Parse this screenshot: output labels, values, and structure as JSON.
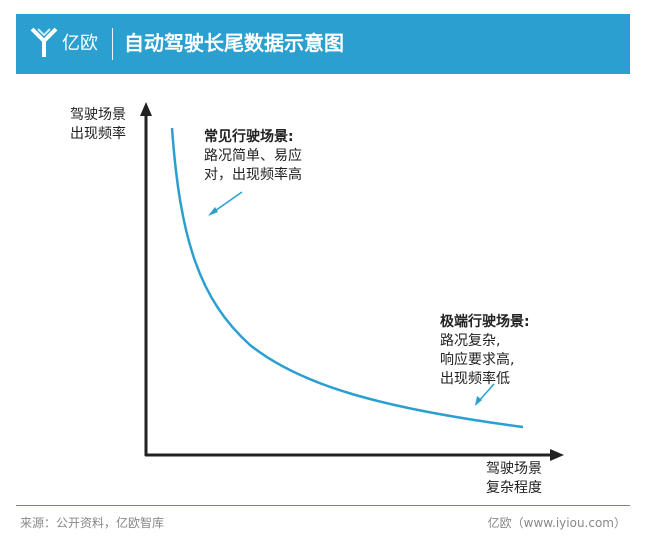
{
  "header": {
    "logo_text": "亿欧",
    "title": "自动驾驶长尾数据示意图"
  },
  "diagram": {
    "y_axis_label_line1": "驾驶场景",
    "y_axis_label_line2": "出现频率",
    "x_axis_label_line1": "驾驶场景",
    "x_axis_label_line2": "复杂程度",
    "common": {
      "heading": "常见行驶场景:",
      "line1": "路况简单、易应",
      "line2": "对，出现频率高"
    },
    "extreme": {
      "heading": "极端行驶场景:",
      "line1": "路况复杂,",
      "line2": "响应要求高,",
      "line3": "出现频率低"
    },
    "colors": {
      "curve": "#2a9fd0",
      "axis": "#222222",
      "header": "#2a9fd0"
    }
  },
  "footer": {
    "source": "来源：公开资料，亿欧智库",
    "brand": "亿欧（www.iyiou.com）"
  }
}
